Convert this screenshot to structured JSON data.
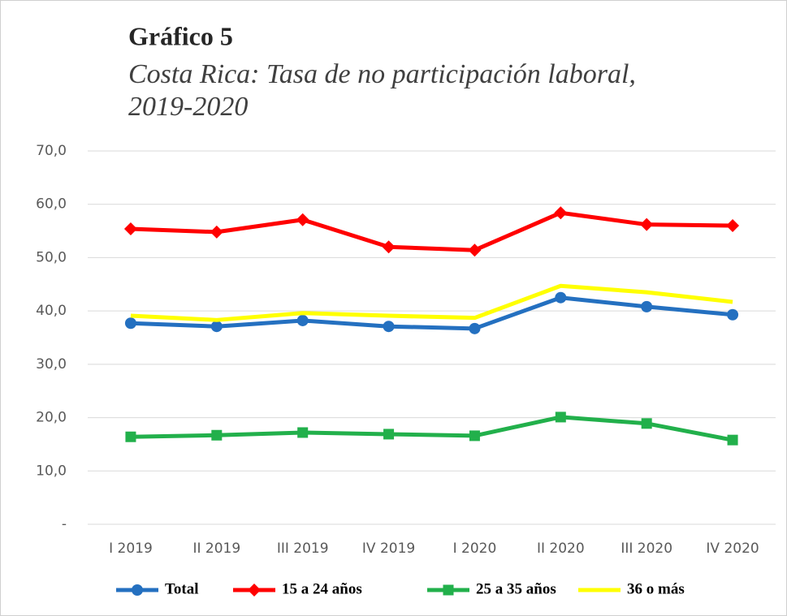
{
  "chart_data": {
    "type": "line",
    "title": "Gráfico 5",
    "subtitle": [
      "Costa Rica: Tasa de no participación laboral,",
      "2019-2020"
    ],
    "categories": [
      "I 2019",
      "II 2019",
      "III 2019",
      "IV 2019",
      "I 2020",
      "II 2020",
      "III 2020",
      "IV 2020"
    ],
    "series": [
      {
        "name": "Total",
        "color": "#2470c0",
        "marker": "circle",
        "values": [
          37.7,
          37.1,
          38.2,
          37.1,
          36.7,
          42.5,
          40.8,
          39.3
        ]
      },
      {
        "name": "15 a 24 años",
        "color": "#ff0000",
        "marker": "diamond",
        "values": [
          55.4,
          54.8,
          57.1,
          52.0,
          51.4,
          58.4,
          56.2,
          56.0
        ]
      },
      {
        "name": "25 a 35 años",
        "color": "#22b04b",
        "marker": "square",
        "values": [
          16.4,
          16.7,
          17.2,
          16.9,
          16.6,
          20.1,
          18.9,
          15.8
        ]
      },
      {
        "name": "36 o más",
        "color": "#ffff00",
        "marker": "none",
        "values": [
          39.1,
          38.3,
          39.6,
          39.1,
          38.7,
          44.7,
          43.5,
          41.7
        ]
      }
    ],
    "ylim": [
      0,
      70
    ],
    "yticks": [
      {
        "value": 0,
        "label": "-"
      },
      {
        "value": 10,
        "label": "10,0"
      },
      {
        "value": 20,
        "label": "20,0"
      },
      {
        "value": 30,
        "label": "30,0"
      },
      {
        "value": 40,
        "label": "40,0"
      },
      {
        "value": 50,
        "label": "50,0"
      },
      {
        "value": 60,
        "label": "60,0"
      },
      {
        "value": 70,
        "label": "70,0"
      }
    ],
    "grid": true,
    "legend": "bottom"
  }
}
